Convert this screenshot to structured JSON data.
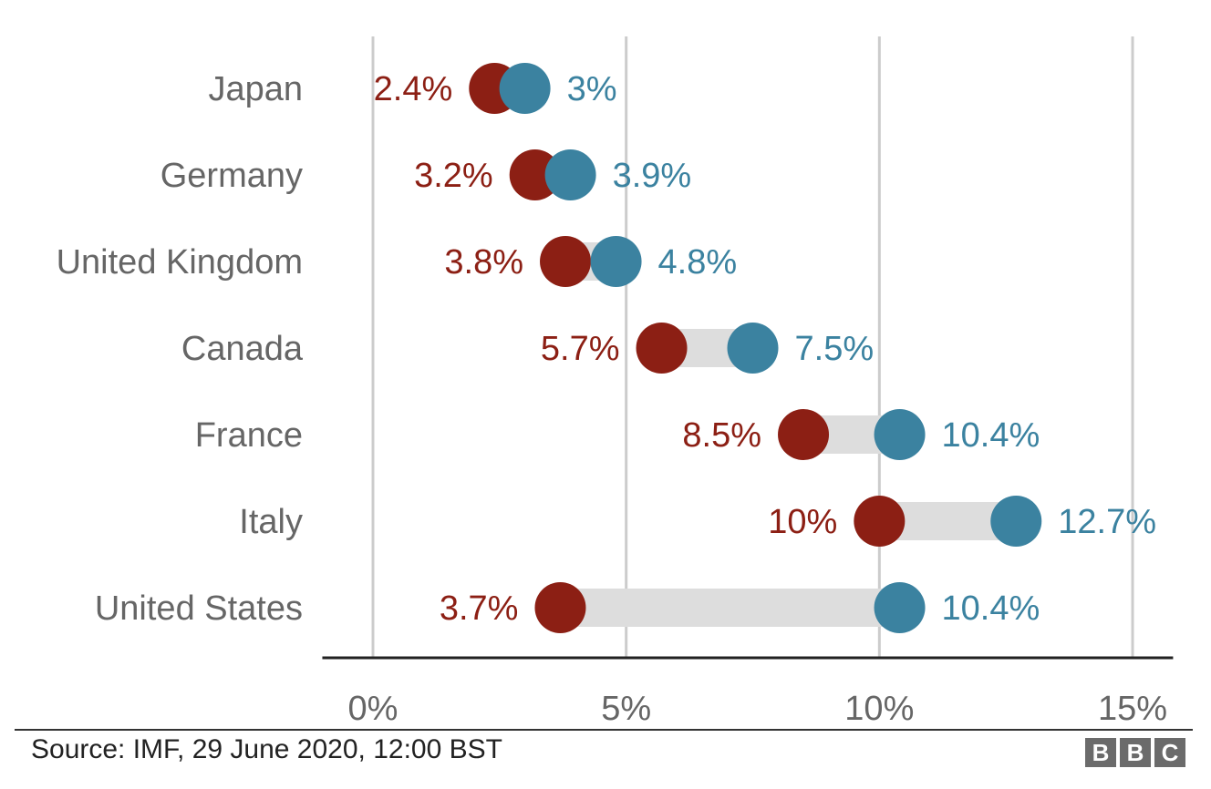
{
  "colors": {
    "before": "#8c1f14",
    "after": "#3b82a0",
    "connector": "#dddddd",
    "grid": "#cccccc",
    "axis": "#222222"
  },
  "chart_data": {
    "type": "dumbbell",
    "xlim": [
      -1,
      15.8
    ],
    "ticks": [
      0,
      5,
      10,
      15
    ],
    "tick_labels": [
      "0%",
      "5%",
      "10%",
      "15%"
    ],
    "grid": true,
    "categories": [
      "Japan",
      "Germany",
      "United Kingdom",
      "Canada",
      "France",
      "Italy",
      "United States"
    ],
    "series": [
      {
        "values": [
          2.4,
          3.2,
          3.8,
          5.7,
          8.5,
          10.0,
          3.7
        ],
        "labels": [
          "2.4%",
          "3.2%",
          "3.8%",
          "5.7%",
          "8.5%",
          "10%",
          "3.7%"
        ]
      },
      {
        "values": [
          3.0,
          3.9,
          4.8,
          7.5,
          10.4,
          12.7,
          10.4
        ],
        "labels": [
          "3%",
          "3.9%",
          "4.8%",
          "7.5%",
          "10.4%",
          "12.7%",
          "10.4%"
        ]
      }
    ]
  },
  "footer": {
    "source": "Source: IMF, 29 June 2020, 12:00 BST",
    "logo": [
      "B",
      "B",
      "C"
    ]
  }
}
